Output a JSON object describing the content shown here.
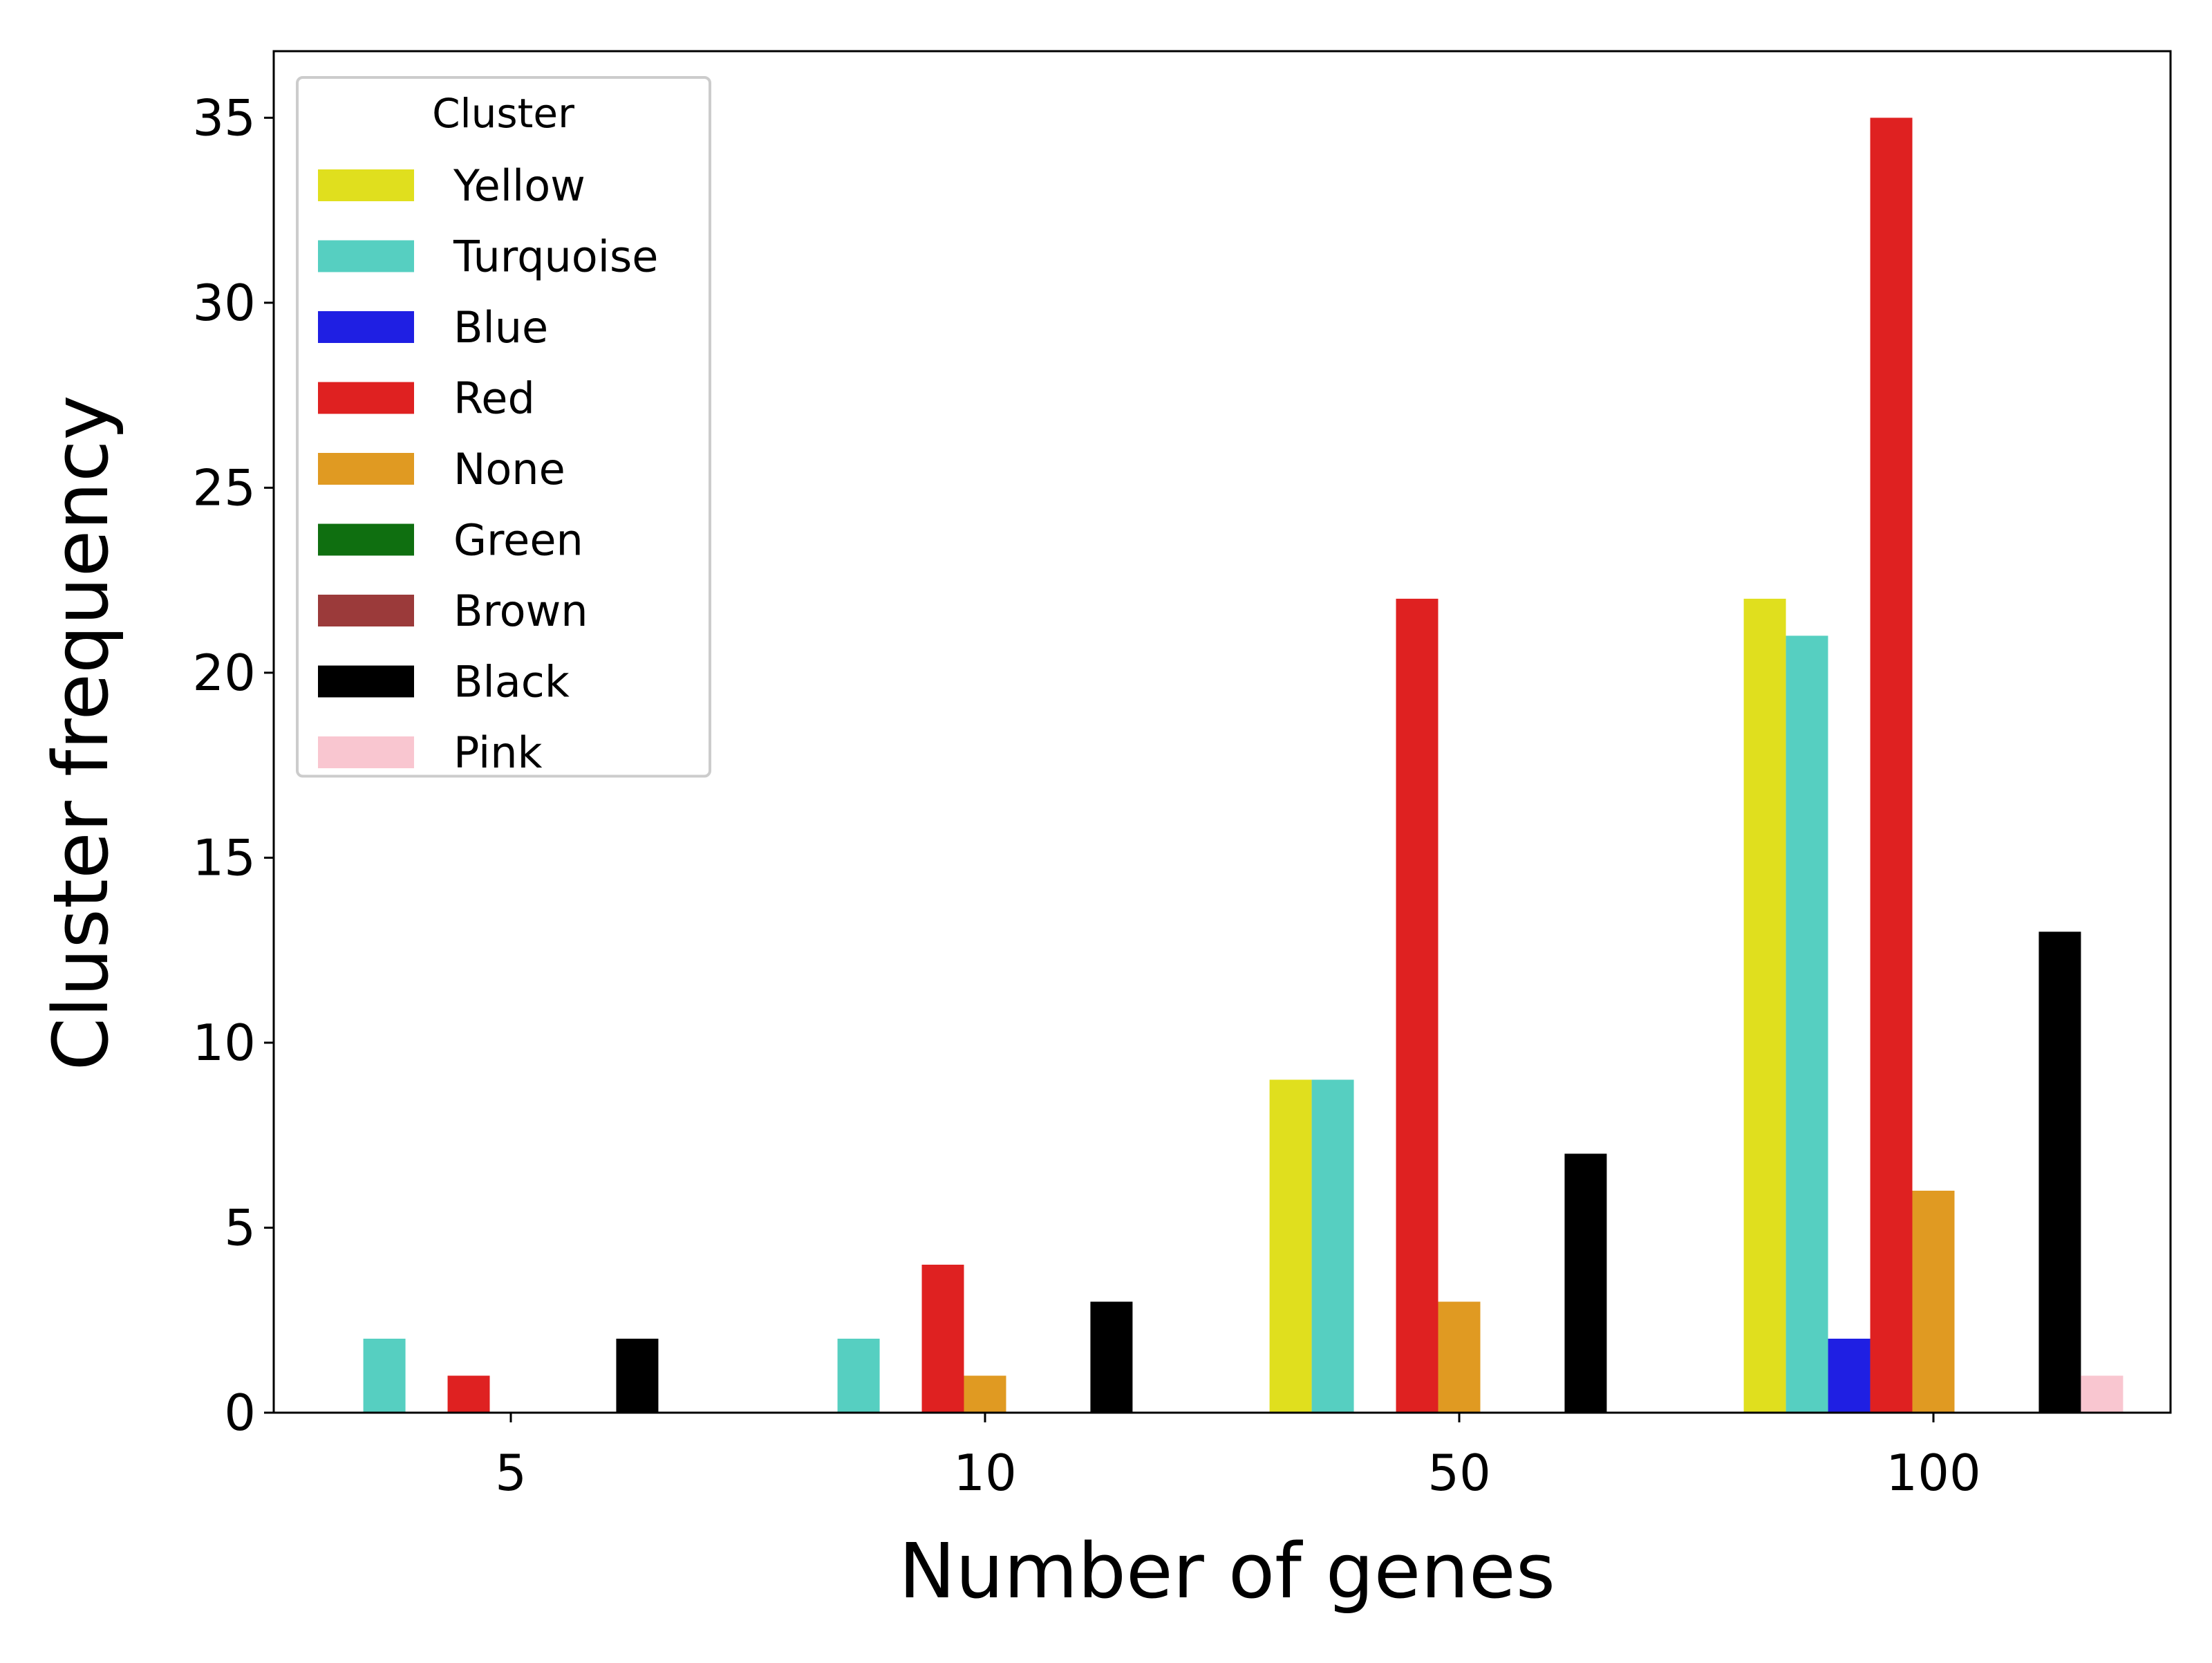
{
  "chart_data": {
    "type": "bar",
    "xlabel": "Number of genes",
    "ylabel": "Cluster frequency",
    "categories": [
      "5",
      "10",
      "50",
      "100"
    ],
    "ylim": [
      0,
      36.8
    ],
    "yticks": [
      0,
      5,
      10,
      15,
      20,
      25,
      30,
      35
    ],
    "grid": false,
    "legend": {
      "title": "Cluster",
      "position": "top-left"
    },
    "series": [
      {
        "name": "Yellow",
        "color": "#e0df1e",
        "values": [
          0,
          0,
          9,
          22
        ]
      },
      {
        "name": "Turquoise",
        "color": "#56cfc1",
        "values": [
          2,
          2,
          9,
          21
        ]
      },
      {
        "name": "Blue",
        "color": "#1f1fe3",
        "values": [
          0,
          0,
          0,
          2
        ]
      },
      {
        "name": "Red",
        "color": "#df2121",
        "values": [
          1,
          4,
          22,
          35
        ]
      },
      {
        "name": "None",
        "color": "#e09a22",
        "values": [
          0,
          1,
          3,
          6
        ]
      },
      {
        "name": "Green",
        "color": "#0f6f10",
        "values": [
          0,
          0,
          0,
          0
        ]
      },
      {
        "name": "Brown",
        "color": "#9b3a3a",
        "values": [
          0,
          0,
          0,
          0
        ]
      },
      {
        "name": "Black",
        "color": "#000000",
        "values": [
          2,
          3,
          7,
          13
        ]
      },
      {
        "name": "Pink",
        "color": "#f9c6d0",
        "values": [
          0,
          0,
          0,
          1
        ]
      }
    ]
  }
}
